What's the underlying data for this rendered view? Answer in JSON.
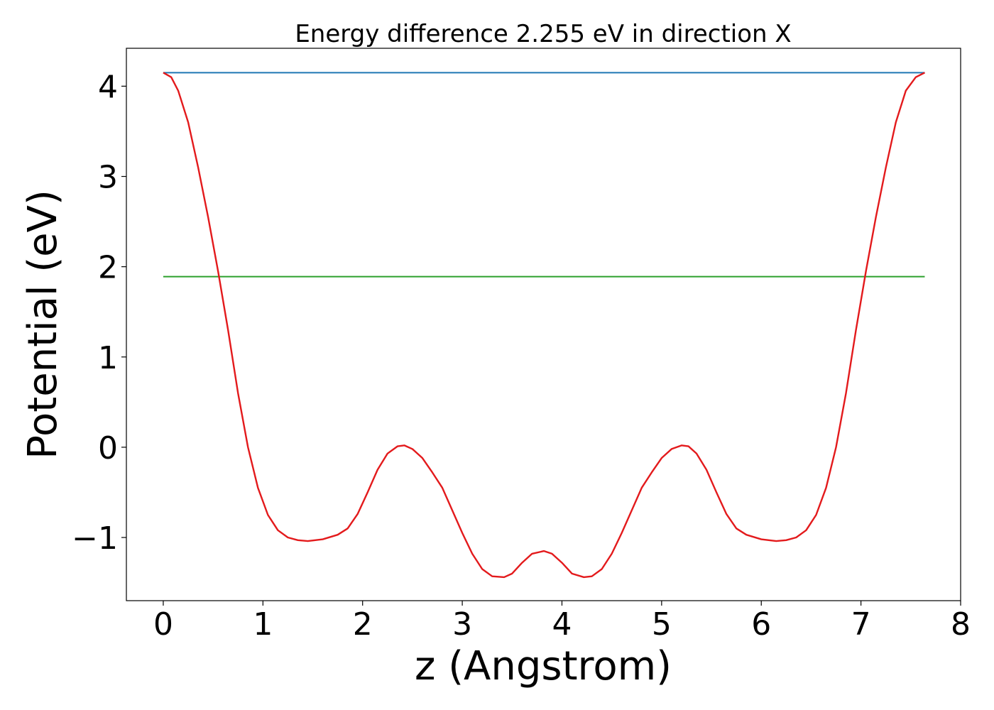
{
  "chart_data": {
    "type": "line",
    "title": "Energy difference 2.255 eV in direction X",
    "xlabel": "z (Angstrom)",
    "ylabel": "Potential (eV)",
    "xlim": [
      -0.37,
      8.0
    ],
    "ylim": [
      -1.7,
      4.42
    ],
    "xticks": [
      0,
      1,
      2,
      3,
      4,
      5,
      6,
      7,
      8
    ],
    "xtick_labels": [
      "0",
      "1",
      "2",
      "3",
      "4",
      "5",
      "6",
      "7",
      "8"
    ],
    "yticks": [
      -1,
      0,
      1,
      2,
      3,
      4
    ],
    "ytick_labels": [
      "−1",
      "0",
      "1",
      "2",
      "3",
      "4"
    ],
    "grid": false,
    "series": [
      {
        "color": "#1f77b4",
        "x": [
          0,
          7.64
        ],
        "y": [
          4.15,
          4.15
        ]
      },
      {
        "color": "#2ca02c",
        "x": [
          0,
          7.64
        ],
        "y": [
          1.89,
          1.89
        ]
      },
      {
        "color": "#e31a1c",
        "x": [
          0,
          0.08,
          0.15,
          0.25,
          0.35,
          0.45,
          0.55,
          0.65,
          0.75,
          0.85,
          0.95,
          1.05,
          1.15,
          1.25,
          1.35,
          1.45,
          1.6,
          1.75,
          1.85,
          1.95,
          2.05,
          2.15,
          2.25,
          2.35,
          2.42,
          2.5,
          2.6,
          2.7,
          2.8,
          2.9,
          3.0,
          3.1,
          3.2,
          3.3,
          3.42,
          3.5,
          3.6,
          3.7,
          3.82,
          3.9,
          4.0,
          4.1,
          4.22,
          4.3,
          4.4,
          4.5,
          4.6,
          4.7,
          4.8,
          4.9,
          5.0,
          5.1,
          5.2,
          5.27,
          5.35,
          5.45,
          5.55,
          5.65,
          5.75,
          5.85,
          6.0,
          6.15,
          6.25,
          6.35,
          6.45,
          6.55,
          6.65,
          6.75,
          6.85,
          6.95,
          7.05,
          7.15,
          7.25,
          7.35,
          7.45,
          7.55,
          7.64
        ],
        "y": [
          4.15,
          4.1,
          3.95,
          3.6,
          3.1,
          2.55,
          1.95,
          1.3,
          0.6,
          0.0,
          -0.45,
          -0.75,
          -0.92,
          -1.0,
          -1.03,
          -1.04,
          -1.02,
          -0.97,
          -0.9,
          -0.74,
          -0.5,
          -0.25,
          -0.07,
          0.01,
          0.02,
          -0.02,
          -0.12,
          -0.28,
          -0.45,
          -0.7,
          -0.95,
          -1.18,
          -1.35,
          -1.43,
          -1.44,
          -1.4,
          -1.28,
          -1.18,
          -1.15,
          -1.18,
          -1.28,
          -1.4,
          -1.44,
          -1.43,
          -1.35,
          -1.18,
          -0.95,
          -0.7,
          -0.45,
          -0.28,
          -0.12,
          -0.02,
          0.02,
          0.01,
          -0.07,
          -0.25,
          -0.5,
          -0.74,
          -0.9,
          -0.97,
          -1.02,
          -1.04,
          -1.03,
          -1.0,
          -0.92,
          -0.75,
          -0.45,
          0.0,
          0.6,
          1.3,
          1.95,
          2.55,
          3.1,
          3.6,
          3.95,
          4.1,
          4.15
        ]
      }
    ]
  }
}
